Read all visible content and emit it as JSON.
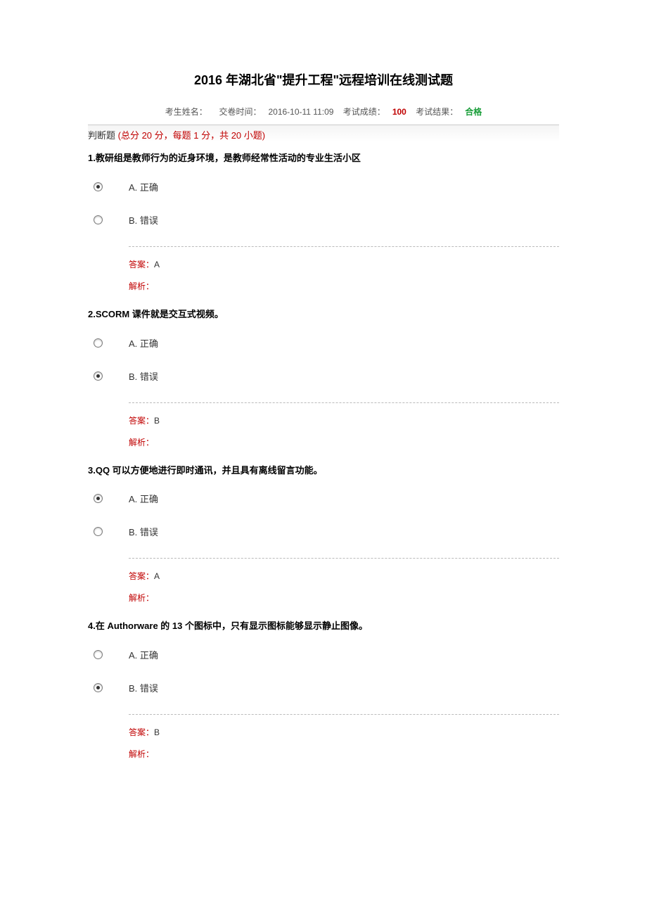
{
  "title": "2016 年湖北省\"提升工程\"远程培训在线测试题",
  "meta": {
    "name_label": "考生姓名：",
    "time_label": "交卷时间：",
    "time_value": "2016-10-11 11:09",
    "score_label": "考试成绩：",
    "score_value": "100",
    "result_label": "考试结果：",
    "result_value": "合格"
  },
  "section": {
    "label": "判断题",
    "note": " (总分 20 分，每题 1 分，共 20 小题)"
  },
  "answer_label": "答案：",
  "analysis_label": "解析：",
  "option_a_label": "A. 正确",
  "option_b_label": "B. 错误",
  "questions": [
    {
      "num": "1.",
      "text": "教研组是教师行为的近身环境，是教师经常性活动的专业生活小区",
      "selected": "A",
      "answer": "A"
    },
    {
      "num": "2.",
      "text": "SCORM 课件就是交互式视频。",
      "selected": "B",
      "answer": "B"
    },
    {
      "num": "3.",
      "text": "QQ 可以方便地进行即时通讯，并且具有离线留言功能。",
      "selected": "A",
      "answer": "A"
    },
    {
      "num": "4.",
      "text": "在 Authorware 的 13 个图标中，只有显示图标能够显示静止图像。",
      "selected": "B",
      "answer": "B"
    }
  ]
}
